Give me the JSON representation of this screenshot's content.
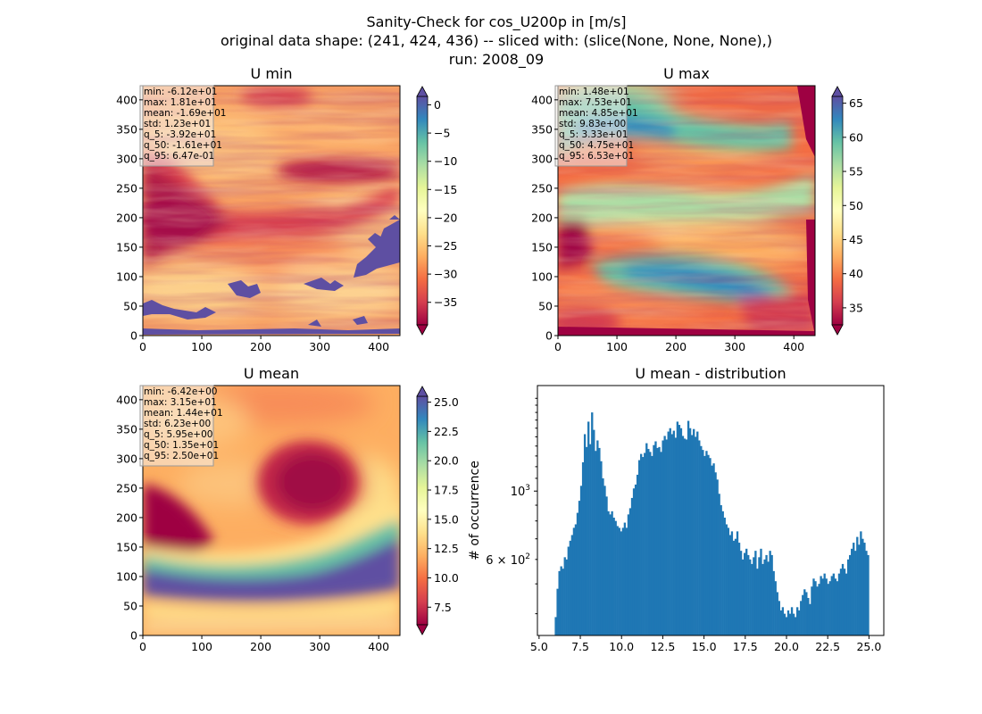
{
  "suptitle": [
    "Sanity-Check for cos_U200p in [m/s]",
    "original data shape: (241, 424, 436) -- sliced with: (slice(None, None, None),)",
    "run: 2008_09"
  ],
  "chart_data": [
    {
      "type": "heatmap",
      "title": "U min",
      "colormap": "Spectral",
      "x_ticks": [
        0,
        100,
        200,
        300,
        400
      ],
      "y_ticks": [
        0,
        50,
        100,
        150,
        200,
        250,
        300,
        350,
        400
      ],
      "xlim": [
        0,
        436
      ],
      "ylim": [
        0,
        424
      ],
      "colorbar": {
        "vmin": -39,
        "vmax": 1.5,
        "ticks": [
          0,
          -5,
          -10,
          -15,
          -20,
          -25,
          -30,
          -35
        ],
        "extend": "both"
      },
      "stats": [
        "min: -6.12e+01",
        "max: 1.81e+01",
        "mean: -1.69e+01",
        "std: 1.23e+01",
        "q_5: -3.92e+01",
        "q_50: -1.61e+01",
        "q_95: 6.47e-01"
      ]
    },
    {
      "type": "heatmap",
      "title": "U max",
      "colormap": "Spectral",
      "x_ticks": [
        0,
        100,
        200,
        300,
        400
      ],
      "y_ticks": [
        0,
        50,
        100,
        150,
        200,
        250,
        300,
        350,
        400
      ],
      "xlim": [
        0,
        436
      ],
      "ylim": [
        0,
        424
      ],
      "colorbar": {
        "vmin": 32.5,
        "vmax": 66,
        "ticks": [
          35,
          40,
          45,
          50,
          55,
          60,
          65
        ],
        "extend": "both"
      },
      "stats": [
        "min: 1.48e+01",
        "max: 7.53e+01",
        "mean: 4.85e+01",
        "std: 9.83e+00",
        "q_5: 3.33e+01",
        "q_50: 4.75e+01",
        "q_95: 6.53e+01"
      ]
    },
    {
      "type": "heatmap",
      "title": "U mean",
      "colormap": "Spectral",
      "x_ticks": [
        0,
        100,
        200,
        300,
        400
      ],
      "y_ticks": [
        0,
        50,
        100,
        150,
        200,
        250,
        300,
        350,
        400
      ],
      "xlim": [
        0,
        436
      ],
      "ylim": [
        0,
        424
      ],
      "colorbar": {
        "vmin": 6,
        "vmax": 25.5,
        "ticks": [
          7.5,
          10.0,
          12.5,
          15.0,
          17.5,
          20.0,
          22.5,
          25.0
        ],
        "tick_labels": [
          "7.5",
          "10.0",
          "12.5",
          "15.0",
          "17.5",
          "20.0",
          "22.5",
          "25.0"
        ],
        "extend": "both"
      },
      "stats": [
        "min: -6.42e+00",
        "max: 3.15e+01",
        "mean: 1.44e+01",
        "std: 6.23e+00",
        "q_5: 5.95e+00",
        "q_50: 1.35e+01",
        "q_95: 2.50e+01"
      ]
    },
    {
      "type": "bar",
      "title": "U mean - distribution",
      "ylabel": "# of occurrence",
      "yscale": "log",
      "xlim": [
        4.9,
        25.9
      ],
      "ylim": [
        340,
        2200
      ],
      "x_ticks": [
        5.0,
        7.5,
        10.0,
        12.5,
        15.0,
        17.5,
        20.0,
        22.5,
        25.0
      ],
      "x_tick_labels": [
        "5.0",
        "7.5",
        "10.0",
        "12.5",
        "15.0",
        "17.5",
        "20.0",
        "22.5",
        "25.0"
      ],
      "y_ticks": [
        600,
        1000
      ],
      "bar_color": "#1f77b4",
      "bin_edges_range": [
        5.95,
        25.0
      ],
      "counts": [
        390,
        482,
        550,
        570,
        560,
        610,
        600,
        660,
        690,
        720,
        760,
        780,
        850,
        930,
        1040,
        1240,
        1530,
        1390,
        1680,
        1420,
        1800,
        1580,
        1350,
        1460,
        1380,
        1250,
        1100,
        1040,
        960,
        860,
        840,
        860,
        820,
        800,
        770,
        760,
        740,
        760,
        790,
        760,
        840,
        880,
        950,
        1020,
        1050,
        1130,
        1260,
        1320,
        1290,
        1330,
        1430,
        1370,
        1340,
        1300,
        1410,
        1450,
        1380,
        1390,
        1340,
        1460,
        1510,
        1470,
        1560,
        1600,
        1530,
        1570,
        1490,
        1680,
        1640,
        1600,
        1510,
        1480,
        1470,
        1690,
        1600,
        1520,
        1590,
        1500,
        1560,
        1460,
        1400,
        1360,
        1300,
        1350,
        1310,
        1280,
        1210,
        1230,
        1150,
        1090,
        980,
        900,
        860,
        820,
        780,
        760,
        720,
        740,
        690,
        700,
        740,
        680,
        640,
        600,
        630,
        650,
        620,
        600,
        580,
        610,
        640,
        560,
        610,
        650,
        580,
        600,
        620,
        590,
        640,
        620,
        550,
        510,
        470,
        440,
        410,
        420,
        400,
        390,
        410,
        400,
        420,
        400,
        390,
        420,
        410,
        440,
        460,
        480,
        470,
        450,
        430,
        490,
        520,
        510,
        490,
        500,
        530,
        520,
        540,
        520,
        500,
        510,
        530,
        540,
        520,
        510,
        540,
        560,
        580,
        560,
        540,
        600,
        620,
        650,
        680,
        640,
        710,
        670,
        740,
        700,
        680,
        640,
        620
      ]
    }
  ]
}
